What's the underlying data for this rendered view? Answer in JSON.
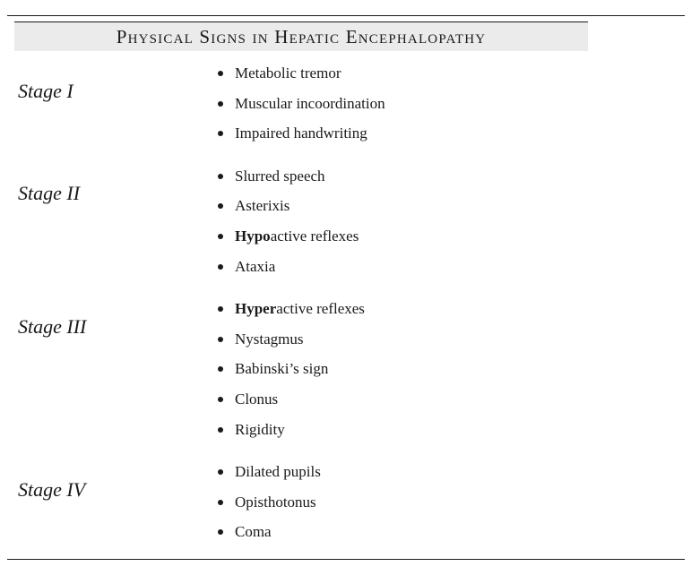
{
  "title": "Physical Signs in Hepatic Encephalopathy",
  "stages": [
    {
      "label": "Stage I",
      "signs": [
        {
          "bold": "",
          "text": "Metabolic tremor"
        },
        {
          "bold": "",
          "text": "Muscular incoordination"
        },
        {
          "bold": "",
          "text": "Impaired handwriting"
        }
      ]
    },
    {
      "label": "Stage II",
      "signs": [
        {
          "bold": "",
          "text": "Slurred speech"
        },
        {
          "bold": "",
          "text": "Asterixis"
        },
        {
          "bold": "Hypo",
          "text": "active reflexes"
        },
        {
          "bold": "",
          "text": "Ataxia"
        }
      ]
    },
    {
      "label": "Stage III",
      "signs": [
        {
          "bold": "Hyper",
          "text": "active reflexes"
        },
        {
          "bold": "",
          "text": "Nystagmus"
        },
        {
          "bold": "",
          "text": "Babinski’s sign"
        },
        {
          "bold": "",
          "text": "Clonus"
        },
        {
          "bold": "",
          "text": "Rigidity"
        }
      ]
    },
    {
      "label": "Stage IV",
      "signs": [
        {
          "bold": "",
          "text": "Dilated pupils"
        },
        {
          "bold": "",
          "text": "Opisthotonus"
        },
        {
          "bold": "",
          "text": "Coma"
        }
      ]
    }
  ]
}
